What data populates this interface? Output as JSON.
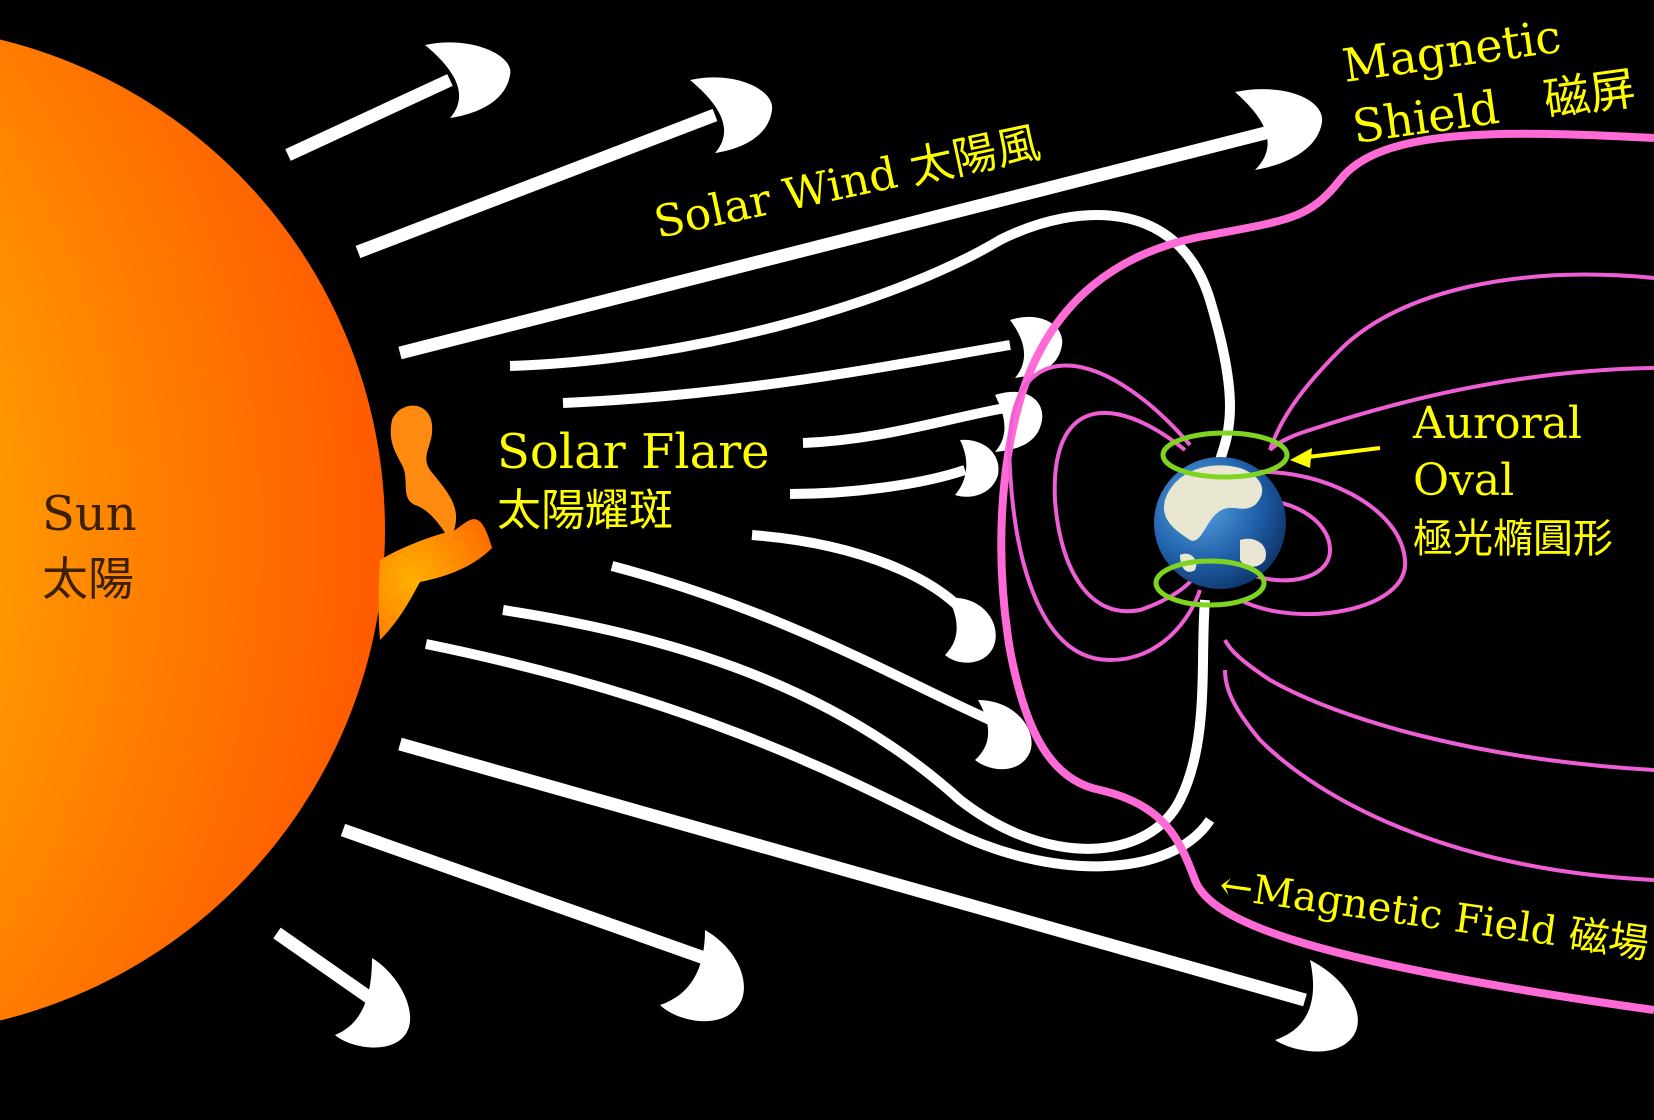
{
  "labels": {
    "sun_en": "Sun",
    "sun_zh": "太陽",
    "solar_wind": "Solar Wind 太陽風",
    "solar_flare_en": "Solar Flare",
    "solar_flare_zh": "太陽耀斑",
    "magnetic_shield_1": "Magnetic",
    "magnetic_shield_2": "Shield　磁屏",
    "auroral_1": "Auroral",
    "auroral_2": "Oval",
    "auroral_3": "極光橢圓形",
    "magnetic_field": "←Magnetic Field 磁場"
  },
  "colors": {
    "background": "#000000",
    "label": "#ffff00",
    "wind": "#ffffff",
    "magnetosphere": "#ff6bd6",
    "auroral_oval": "#7ed421",
    "earth_ocean": "#1f5fa8"
  }
}
